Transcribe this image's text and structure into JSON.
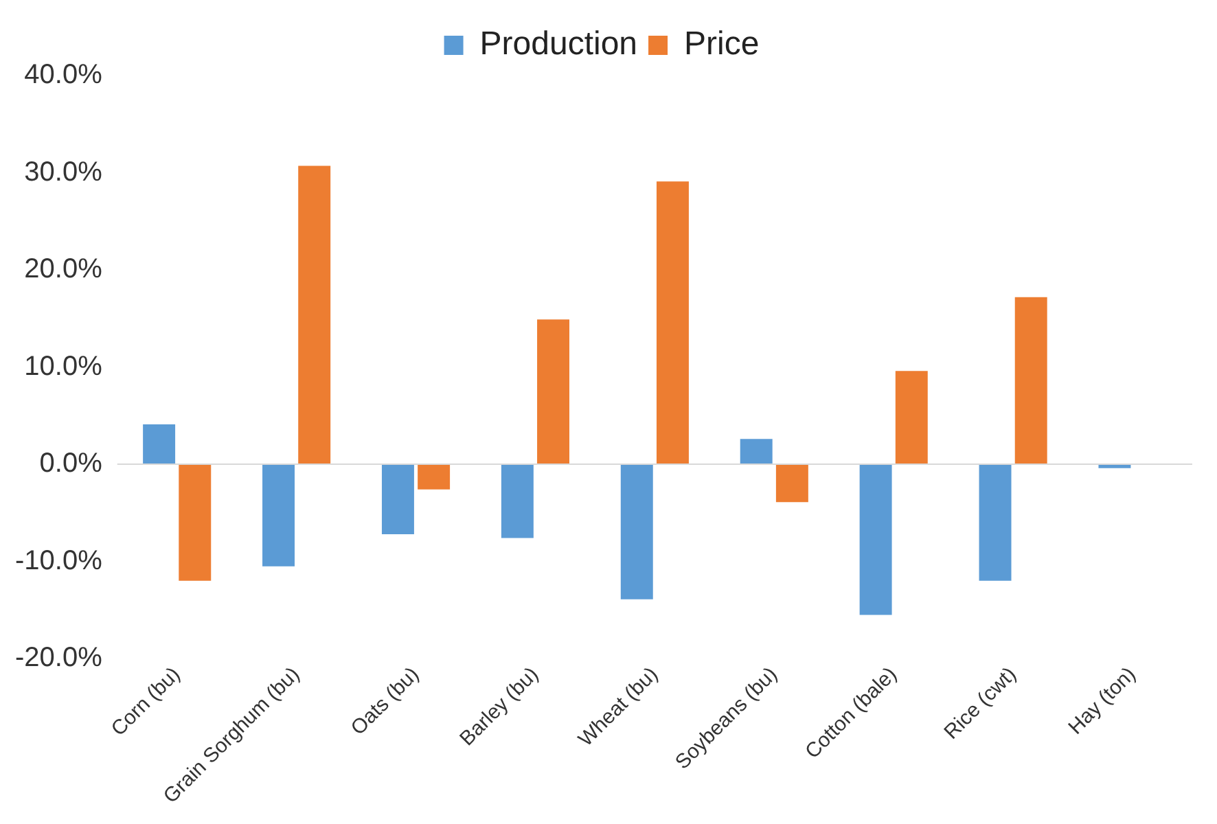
{
  "chart_data": {
    "type": "bar",
    "categories": [
      "Corn (bu)",
      "Grain Sorghum (bu)",
      "Oats (bu)",
      "Barley (bu)",
      "Wheat (bu)",
      "Soybeans (bu)",
      "Cotton (bale)",
      "Rice (cwt)",
      "Hay (ton)"
    ],
    "series": [
      {
        "name": "Production",
        "color": "#5b9bd5",
        "values": [
          4.1,
          -10.5,
          -7.2,
          -7.6,
          -13.9,
          2.6,
          -15.5,
          -12.0,
          -0.4
        ]
      },
      {
        "name": "Price",
        "color": "#ed7d31",
        "values": [
          -12.0,
          30.7,
          -2.6,
          14.9,
          29.1,
          -3.9,
          9.6,
          17.2,
          null
        ]
      }
    ],
    "ylim": [
      -20,
      40
    ],
    "yticks": [
      {
        "value": -20,
        "label": "-20.0%"
      },
      {
        "value": -10,
        "label": "-10.0%"
      },
      {
        "value": 0,
        "label": "0.0%"
      },
      {
        "value": 10,
        "label": "10.0%"
      },
      {
        "value": 20,
        "label": "20.0%"
      },
      {
        "value": 30,
        "label": "30.0%"
      },
      {
        "value": 40,
        "label": "40.0%"
      }
    ],
    "ref_lines": [
      {
        "axis": "y",
        "value": 0,
        "color": "#d9d9d9"
      }
    ],
    "grid": false,
    "legend": "top"
  }
}
